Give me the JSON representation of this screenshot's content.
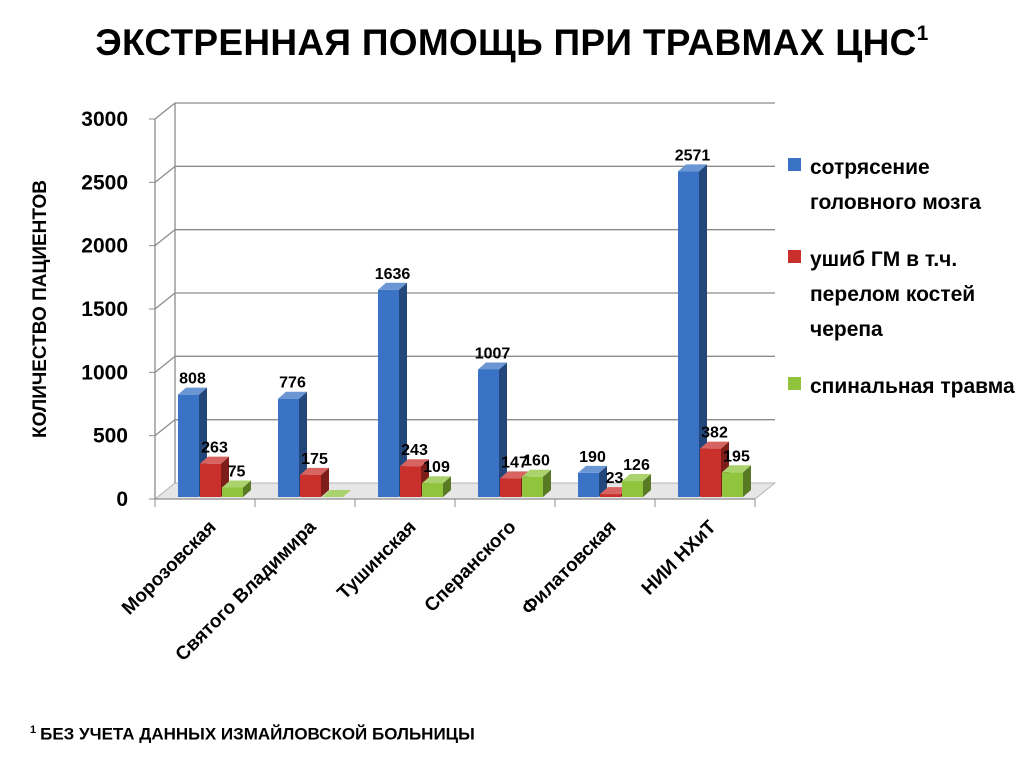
{
  "title": "ЭКСТРЕННАЯ ПОМОЩЬ ПРИ ТРАВМАХ ЦНС",
  "title_sup": "1",
  "footnote_sup": "1",
  "footnote": "БЕЗ УЧЕТА ДАННЫХ ИЗМАЙЛОВСКОЙ БОЛЬНИЦЫ",
  "chart_data": {
    "type": "bar",
    "title": "ЭКСТРЕННАЯ ПОМОЩЬ ПРИ ТРАВМАХ ЦНС",
    "xlabel": "",
    "ylabel": "КОЛИЧЕСТВО ПАЦИЕНТОВ",
    "ylim": [
      0,
      3000
    ],
    "yticks": [
      0,
      500,
      1000,
      1500,
      2000,
      2500,
      3000
    ],
    "grid": true,
    "legend_position": "right",
    "categories": [
      "Морозовская",
      "Святого Владимира",
      "Тушинская",
      "Сперанского",
      "Филатовская",
      "НИИ НХиТ"
    ],
    "series": [
      {
        "name": "сотрясение головного мозга",
        "color": "#3a73c6",
        "values": [
          808,
          776,
          1636,
          1007,
          190,
          2571
        ]
      },
      {
        "name": "ушиб ГМ в т.ч. перелом костей черепа",
        "color": "#c9302c",
        "values": [
          263,
          175,
          243,
          147,
          23,
          382
        ]
      },
      {
        "name": "спинальная травма",
        "color": "#8fc43c",
        "values": [
          75,
          0,
          109,
          160,
          126,
          195
        ]
      }
    ],
    "data_labels": [
      [
        "808",
        "776",
        "1636",
        "1007",
        "190",
        "2571"
      ],
      [
        "263",
        "175",
        "243",
        "147",
        "23",
        "382"
      ],
      [
        "75",
        "",
        "109",
        "160",
        "126",
        "195"
      ]
    ]
  }
}
